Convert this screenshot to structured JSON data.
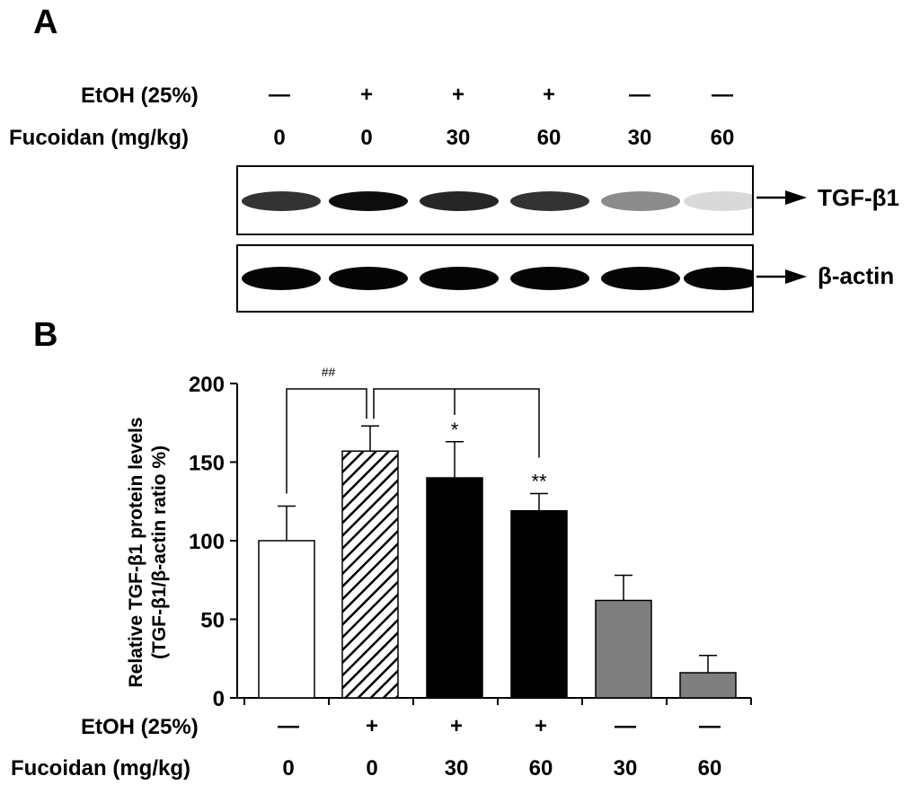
{
  "panel_a": {
    "letter": "A",
    "etoh_label": "EtOH (25%)",
    "fucoidan_label": "Fucoidan (mg/kg)",
    "etoh_values": [
      "—",
      "+",
      "+",
      "+",
      "—",
      "—"
    ],
    "fucoidan_values": [
      "0",
      "0",
      "30",
      "60",
      "30",
      "60"
    ],
    "blots": {
      "tgf": {
        "name": "TGF-β1",
        "band_intensity": [
          0.8,
          0.95,
          0.85,
          0.8,
          0.45,
          0.15
        ]
      },
      "actin": {
        "name": "β-actin",
        "band_intensity": [
          0.98,
          0.98,
          0.98,
          0.98,
          0.98,
          0.98
        ]
      }
    }
  },
  "panel_b": {
    "letter": "B",
    "etoh_label": "EtOH (25%)",
    "fucoidan_label": "Fucoidan (mg/kg)",
    "etoh_values": [
      "—",
      "+",
      "+",
      "+",
      "—",
      "—"
    ],
    "fucoidan_values": [
      "0",
      "0",
      "30",
      "60",
      "30",
      "60"
    ]
  },
  "chart_data": {
    "type": "bar",
    "ylabel_line1": "Relative TGF-β1 protein levels",
    "ylabel_line2": "(TGF-β1/β-actin ratio %)",
    "ylim": [
      0,
      200
    ],
    "yticks": [
      "0",
      "50",
      "100",
      "150",
      "200"
    ],
    "values": [
      100,
      157,
      140,
      119,
      62,
      16
    ],
    "errors": [
      22,
      16,
      23,
      11,
      16,
      11
    ],
    "bar_fills": [
      "white",
      "hatched",
      "black",
      "black",
      "gray",
      "gray"
    ],
    "colors": {
      "black": "#000000",
      "gray": "#7f7f7f",
      "white": "#ffffff"
    },
    "significance": [
      {
        "bars": [
          0,
          1
        ],
        "label": "##"
      },
      {
        "bars": [
          1,
          2,
          3
        ],
        "label": ""
      }
    ],
    "bar_annotations": [
      "",
      "",
      "*",
      "**",
      "",
      ""
    ]
  }
}
